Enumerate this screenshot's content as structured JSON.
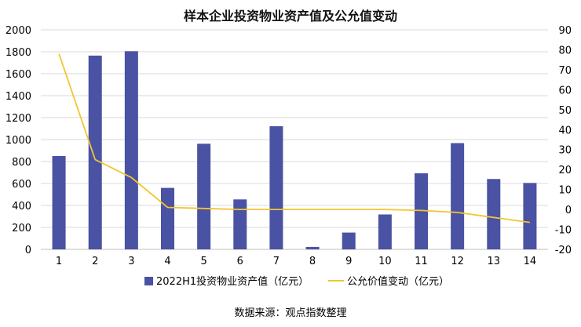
{
  "chart_data": {
    "type": "bar",
    "title": "样本企业投资物业资产值及公允值变动",
    "categories": [
      "1",
      "2",
      "3",
      "4",
      "5",
      "6",
      "7",
      "8",
      "9",
      "10",
      "11",
      "12",
      "13",
      "14"
    ],
    "series": [
      {
        "name": "2022H1投资物业资产值（亿元）",
        "type": "bar",
        "axis": "left",
        "color": "#4a52a3",
        "values": [
          850,
          1765,
          1805,
          560,
          962,
          455,
          1122,
          22,
          153,
          318,
          693,
          968,
          641,
          605
        ]
      },
      {
        "name": "公允价值变动（亿元）",
        "type": "line",
        "axis": "right",
        "color": "#f2c530",
        "values": [
          78,
          25,
          16,
          1,
          0.5,
          0,
          0,
          0,
          0,
          0,
          -0.5,
          -1.5,
          -4,
          -6.5
        ]
      }
    ],
    "y_left": {
      "lim": [
        0,
        2000
      ],
      "ticks": [
        "0",
        "200",
        "400",
        "600",
        "800",
        "1000",
        "1200",
        "1400",
        "1600",
        "1800",
        "2000"
      ]
    },
    "y_right": {
      "lim": [
        -20,
        90
      ],
      "ticks": [
        "-20",
        "-10",
        "0",
        "10",
        "20",
        "30",
        "40",
        "50",
        "60",
        "70",
        "80",
        "90"
      ]
    },
    "grid": true,
    "legend_position": "bottom",
    "source": "数据来源：观点指数整理"
  }
}
